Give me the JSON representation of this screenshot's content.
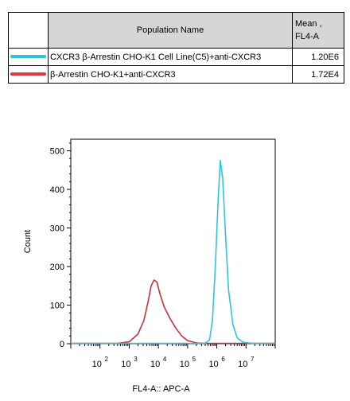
{
  "legend": {
    "header_name": "Population Name",
    "header_mean_line1": "Mean ,",
    "header_mean_line2": "FL4-A",
    "rows": [
      {
        "name": "CXCR3 β-Arrestin CHO-K1 Cell Line(C5)+anti-CXCR3",
        "mean": "1.20E6",
        "color": "#2ec4e0"
      },
      {
        "name": "β-Arrestin CHO-K1+anti-CXCR3",
        "mean": "1.72E4",
        "color": "#e03a3a"
      }
    ]
  },
  "chart_data": {
    "type": "line",
    "xlabel": "FL4-A:: APC-A",
    "ylabel": "Count",
    "xscale": "log",
    "xlim": [
      1,
      8
    ],
    "ylim": [
      0,
      530
    ],
    "yticks": [
      0,
      100,
      200,
      300,
      400,
      500
    ],
    "xticks": [
      {
        "base": "10",
        "exp": "2",
        "pos": 2
      },
      {
        "base": "10",
        "exp": "3",
        "pos": 3
      },
      {
        "base": "10",
        "exp": "4",
        "pos": 4
      },
      {
        "base": "10",
        "exp": "5",
        "pos": 5
      },
      {
        "base": "10",
        "exp": "6",
        "pos": 6
      },
      {
        "base": "10",
        "exp": "7",
        "pos": 7
      }
    ],
    "series": [
      {
        "name": "β-Arrestin CHO-K1+anti-CXCR3",
        "color": "#c8303a",
        "points": [
          [
            1.0,
            1
          ],
          [
            2.6,
            1
          ],
          [
            3.0,
            5
          ],
          [
            3.3,
            25
          ],
          [
            3.5,
            60
          ],
          [
            3.65,
            110
          ],
          [
            3.75,
            150
          ],
          [
            3.85,
            165
          ],
          [
            3.95,
            160
          ],
          [
            4.05,
            130
          ],
          [
            4.2,
            95
          ],
          [
            4.4,
            65
          ],
          [
            4.6,
            40
          ],
          [
            4.8,
            20
          ],
          [
            5.0,
            8
          ],
          [
            5.3,
            2
          ],
          [
            5.6,
            1
          ],
          [
            8.0,
            1
          ]
        ]
      },
      {
        "name": "CXCR3 β-Arrestin CHO-K1 Cell Line(C5)+anti-CXCR3",
        "color": "#2ec4e0",
        "points": [
          [
            1.0,
            1
          ],
          [
            5.6,
            1
          ],
          [
            5.75,
            10
          ],
          [
            5.85,
            60
          ],
          [
            5.95,
            200
          ],
          [
            6.05,
            380
          ],
          [
            6.12,
            475
          ],
          [
            6.2,
            430
          ],
          [
            6.3,
            280
          ],
          [
            6.4,
            140
          ],
          [
            6.55,
            50
          ],
          [
            6.7,
            15
          ],
          [
            6.9,
            4
          ],
          [
            7.2,
            1
          ],
          [
            8.0,
            1
          ]
        ]
      }
    ]
  }
}
